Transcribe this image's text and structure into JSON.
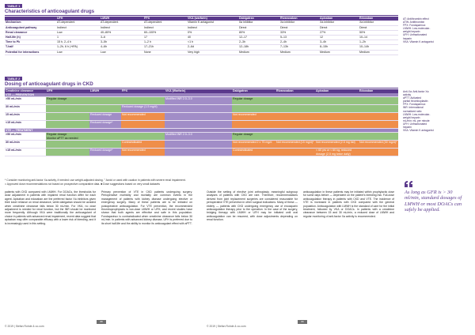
{
  "table1": {
    "tag": "TABLE 1",
    "title": "Characteristics of anticoagulant drugs",
    "headers": [
      "",
      "UFH",
      "LMWH",
      "FPX",
      "VKA (warfarin)",
      "Dabigatran",
      "Rivaroxaban",
      "Apixaban",
      "Edoxaban"
    ],
    "rows": [
      [
        "Mechanism",
        "AT-dependent",
        "AT-dependent",
        "AT-dependent",
        "Vitamin K antagonist",
        "IIa inhibitor",
        "Xa inhibitor",
        "Xa inhibitor",
        "Xa inhibitor"
      ],
      [
        "Anticoagulant pathway",
        "Indirect",
        "Indirect",
        "Indirect",
        "Indirect",
        "Direct",
        "Direct",
        "Direct",
        "Direct"
      ],
      [
        "Renal clearance",
        "Low",
        "40–80%",
        "60–100%",
        "0%",
        "80%",
        "33%",
        "27%",
        "50%"
      ],
      [
        "Half-life (h)",
        "1",
        "3–6",
        "17",
        "40",
        "12–17",
        "5–13",
        "12",
        "10–14"
      ],
      [
        "Time to Pk",
        "15 h, 2–4 h",
        "3–5h",
        "1–2 h",
        "<1 h",
        "2–3h",
        "2–4h",
        "3–4h",
        "1–2h"
      ],
      [
        "T-half",
        "1–2h, 6 h (+tPA)",
        "4–6h",
        "17–21h",
        "2–6d",
        "12–18h",
        "7–13h",
        "8–15h",
        "10–14h"
      ],
      [
        "Potential for interactions",
        "Low",
        "Low",
        "None",
        "Very high",
        "Medium",
        "Medium",
        "Medium",
        "Medium"
      ]
    ],
    "side_notes": [
      "AT: Antithrombin effect",
      "ATW: Antithrombin",
      "FPX: Fondaparinux",
      "LMWH: Low-molecular-",
      "weight heparin",
      "UFH: Unfractionated",
      "heparin",
      "VKA: Vitamin K antagonist"
    ]
  },
  "table2": {
    "tag": "TABLE 2",
    "title": "Dosing of anticoagulant drugs in CKD",
    "headers": [
      "Creatinine clearance",
      "UFH",
      "LMWH",
      "FPX",
      "VKA (Warfarin)",
      "Dabigatran",
      "Rivaroxaban",
      "Apixaban",
      "Edoxaban"
    ],
    "section1": "VTE — PREVENTION",
    "section2": "VTE — TREATMENT",
    "prev_rows": [
      {
        "label": ">50 mL/min",
        "ufh": "Regular dosage",
        "fpx": "",
        "vka": "Modified INR 2.0–3.0",
        "doac": "Regular dosage"
      },
      {
        "label": "30 mL/min",
        "ufh": "",
        "lmwh": "Reduced dosage",
        "fpx": "Reduced dosage (1.5 mg/d)",
        "vka": "",
        "doac": ""
      },
      {
        "label": "15 mL/min",
        "ufh": "",
        "lmwh": "Reduced dosage*",
        "fpx": "Not recommended",
        "vka": "",
        "doac": "Not recommended"
      },
      {
        "label": "<15 mL/min",
        "ufh": "",
        "lmwh": "",
        "fpx": "",
        "vka": "",
        "doac": ""
      }
    ],
    "treat_rows": [
      {
        "label": ">50 mL/min",
        "ufh": "Regular dosage",
        "lmwh": "Monitor aPTT as needed",
        "vka": "Modified INR 2.0–3.0",
        "dabi": "Regular dosage",
        "riva": "",
        "apix": "",
        "edox": ""
      },
      {
        "label": "30 mL/min",
        "ufh": "",
        "lmwh": "",
        "fpx": "Contraindicated",
        "vka": "",
        "dabi": "Not recommended 2 x 75 mg/d",
        "riva": "Not recommended (15 mg/d)*",
        "apix": "Not recommended (2.5 mg bid)",
        "edox": "Not recommended (30 mg/d)*"
      },
      {
        "label": "<15 mL/min",
        "ufh": "",
        "lmwh": "Reduced dosage*",
        "fpx": "Not recommended",
        "vka": "",
        "dabi": "Contraindicated",
        "riva": "",
        "apix": "< 60 yrs or < 60 kg, reduced dosage (2.5 mg twice daily)",
        "edox": ""
      }
    ],
    "footnotes": [
      "* Consider monitoring anti-factor Xa activity, if needed: use weight-adjusted dosing.    ° Avoid or used with caution in patients with severe renal impairment.",
      "□ Approved dose recommendations not based on prospective comparative data.  ■ Dose suggestions based on very small datasets"
    ],
    "side_notes": [
      "Anti-Xa: Anti-factor Xa",
      "activity",
      "aPTT: Activated",
      "partial thromboplastin",
      "FPX: Fondaparinux",
      "INR: International",
      "normalized ratio",
      "LMWH: Low-molecular-",
      "weight heparin",
      "mL/min: mL per minute",
      "UFH: Unfractionated",
      "heparin",
      "VKA: Vitamin K antagonist"
    ]
  },
  "body": {
    "col1": "patients with CKD compared with LMWH. For DOACs, the thresholds for dose adjustment in patients with impaired renal function differ for each agent. Apixaban and edoxaban are the preferred factor Xa inhibitors given their lower reliance on renal clearance, while dabigatran should be avoided when creatinine clearance falls below 30 mL/min. For VKA, no dose adjustment is needed for renal function, but the INR should be monitored more frequently. Although VKA were traditionally the anticoagulant of choice in patients with advanced renal impairment, recent data suggest that apixaban may offer comparable efficacy with a lower risk of bleeding, and it is increasingly used in this setting.",
    "col2": "Primary prevention of VTE in CKD patients undergoing surgery. Perioperative morbidity and mortality are common events in the management of patients with kidney disease undergoing elective or emergency surgery. Many of these patients are to be initiated on postoperative anticoagulation. For VTE prevention, the recommended thromboprophylaxis is low-dose LMWH or UFH, and recent studies have shown that both agents are effective and safe in this population. Fondaparinux is contraindicated when creatinine clearance falls below 30 mL/min. In patients with advanced kidney disease, UFH is preferred due to its short half-life and the ability to monitor its anticoagulant effect with aPTT.",
    "col3": "Outside the setting of elective joint arthroplasty, meaningful subgroup analyses of patients with CKD are rare. Therefore, recommendations derived from joint replacement surgeries are considered reasonable for perioperative VTE prevention in other surgical indications. Many of these — elderly — patients with CKD undergoing emergency use of enoxaparin anticoagulation therapy prior to the operation. In the case of the surgery, bridging therapy with LMWH or UFH may be initiated until oral anticoagulation can be resumed, with dose adjustments depending on renal function.",
    "col4": "anticoagulation in these patients may be initiated within prophylactic dose for some days before — dependent on the patient's bleeding risk. Full-dose anticoagulation therapy in patients with CKD and VTE. The incidence of VTE is increased in patients with CKD compared with the general population. Anticoagulation with LMWH is the standard of care for the initial treatment, followed by VKA or DOACs. In patients with a creatinine clearance between 15 and 30 mL/min, a reduced dose of LMWH and regular monitoring of anti-factor Xa activity is recommended.",
    "pull_quote": "As long as GFR is > 30 ml/min, standard dosages of LMWH or most DOACs can safely be applied."
  },
  "footer": {
    "left_page": "88",
    "right_page": "89",
    "left_text": "© 2019 | Stefan Rohde & co.com",
    "right_text": "© 2019 | Stefan Rohde & co.com"
  }
}
